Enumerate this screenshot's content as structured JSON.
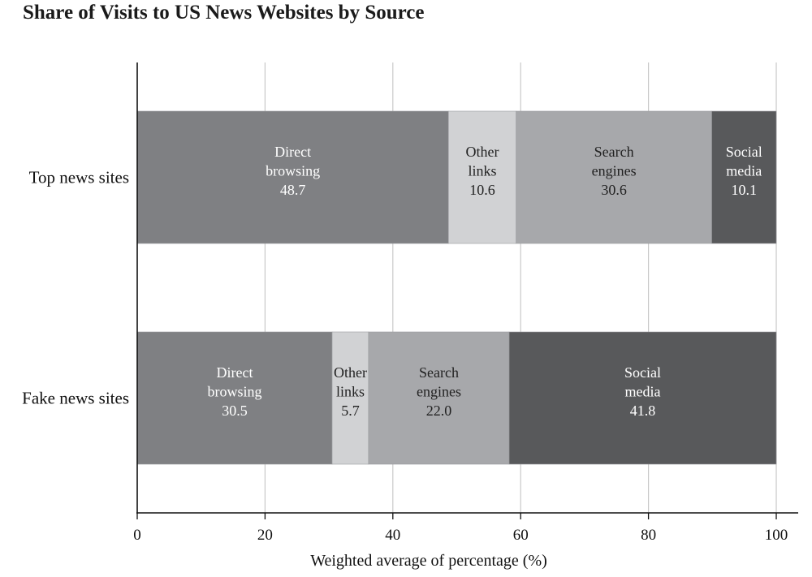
{
  "chart_data": {
    "type": "bar",
    "orientation": "horizontal",
    "stacked": true,
    "title": "Share of Visits to US News Websites by Source",
    "xlabel": "Weighted average of percentage (%)",
    "ylabel": "",
    "xlim": [
      0,
      100
    ],
    "xticks": [
      "0",
      "20",
      "40",
      "60",
      "80",
      "100"
    ],
    "grid": true,
    "legend": "none (segments labeled inline)",
    "categories": [
      "Top news sites",
      "Fake news sites"
    ],
    "series": [
      {
        "name": "Direct browsing",
        "label_lines": [
          "Direct",
          "browsing"
        ],
        "color": "#7f8083",
        "text_color": "#ffffff",
        "values": [
          48.7,
          30.5
        ],
        "value_labels": [
          "48.7",
          "30.5"
        ]
      },
      {
        "name": "Other links",
        "label_lines": [
          "Other",
          "links"
        ],
        "color": "#d1d2d4",
        "text_color": "#222222",
        "values": [
          10.6,
          5.7
        ],
        "value_labels": [
          "10.6",
          "5.7"
        ]
      },
      {
        "name": "Search engines",
        "label_lines": [
          "Search",
          "engines"
        ],
        "color": "#a7a8ab",
        "text_color": "#222222",
        "values": [
          30.6,
          22.0
        ],
        "value_labels": [
          "30.6",
          "22.0"
        ]
      },
      {
        "name": "Social media",
        "label_lines": [
          "Social",
          "media"
        ],
        "color": "#58595b",
        "text_color": "#ffffff",
        "values": [
          10.1,
          41.8
        ],
        "value_labels": [
          "10.1",
          "41.8"
        ]
      }
    ]
  }
}
